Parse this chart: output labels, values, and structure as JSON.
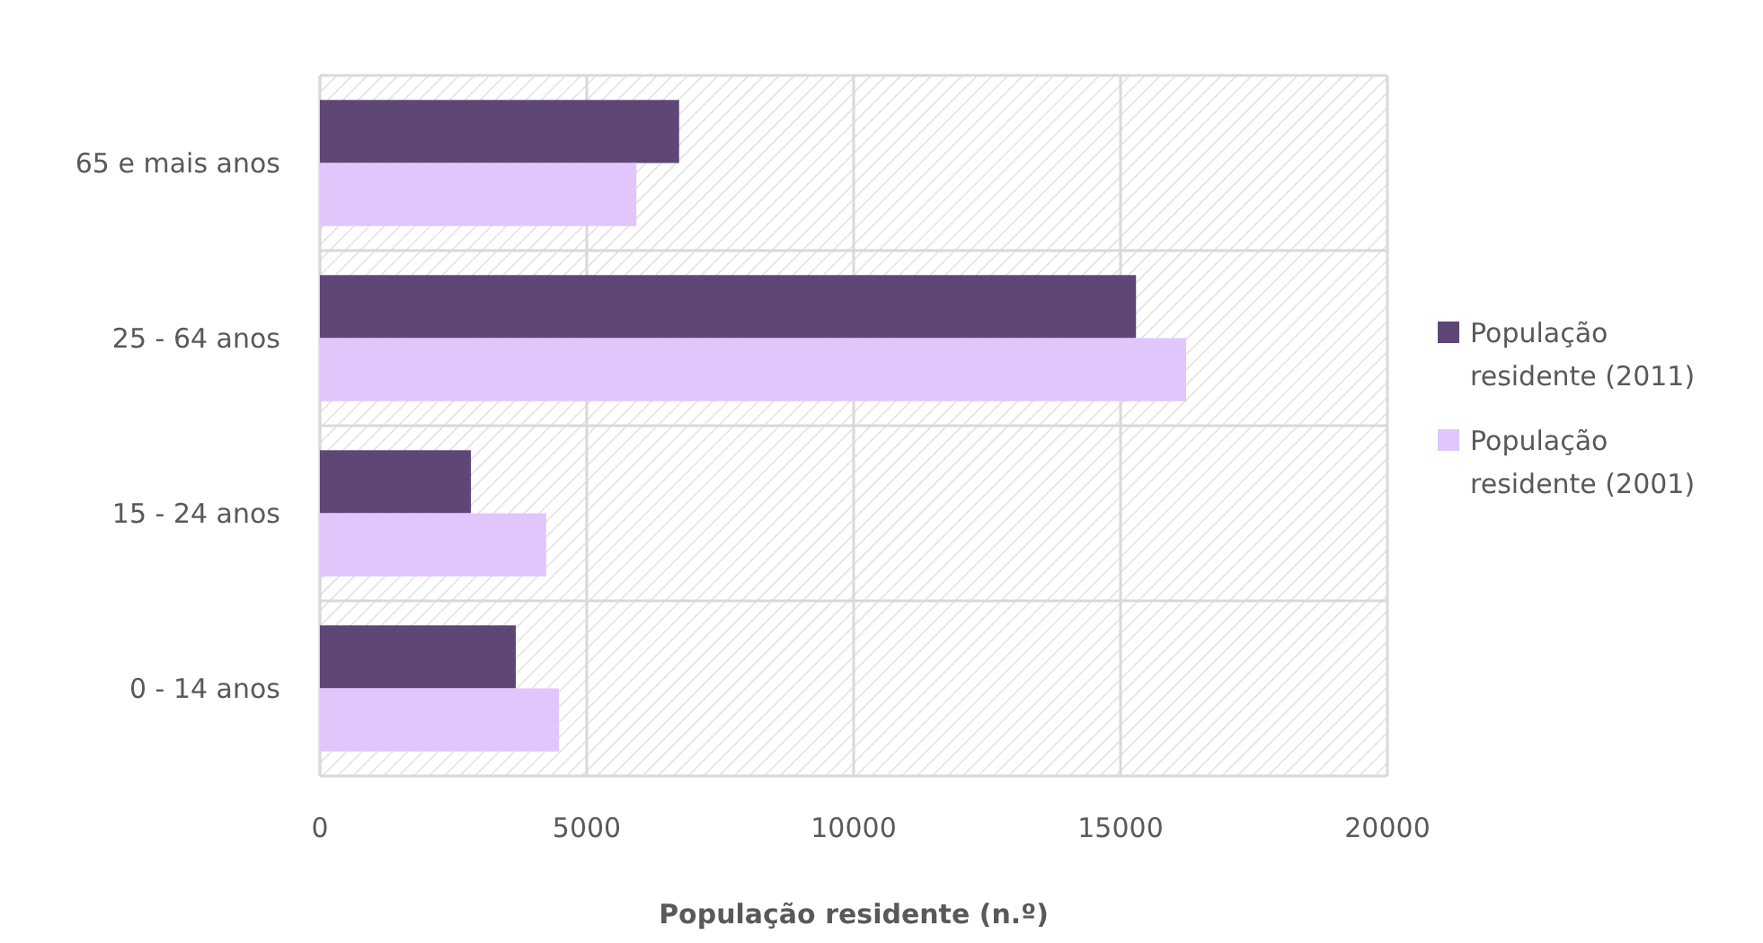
{
  "chart_data": {
    "type": "bar",
    "orientation": "horizontal",
    "xlabel": "População residente (n.º)",
    "categories": [
      "65 e mais anos",
      "25 - 64 anos",
      "15 - 24 anos",
      "0 - 14 anos"
    ],
    "series": [
      {
        "name": "População residente (2011)",
        "color": "#5e4677",
        "values": [
          6730,
          15290,
          2830,
          3670
        ]
      },
      {
        "name": "População residente (2001)",
        "color": "#e0c6fd",
        "values": [
          5930,
          16230,
          4240,
          4480
        ]
      }
    ],
    "xlim": [
      0,
      20000
    ],
    "xticks": [
      0,
      5000,
      10000,
      15000,
      20000
    ],
    "grid": true,
    "legend": "right"
  }
}
